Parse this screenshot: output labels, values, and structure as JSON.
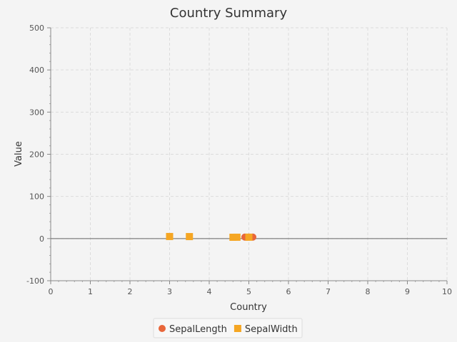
{
  "chart_data": {
    "type": "scatter",
    "title": "Country Summary",
    "xlabel": "Country",
    "ylabel": "Value",
    "xlim": [
      0,
      10
    ],
    "ylim": [
      -100,
      500
    ],
    "x_ticks": [
      0,
      1,
      2,
      3,
      4,
      5,
      6,
      7,
      8,
      9,
      10
    ],
    "y_ticks": [
      -100,
      0,
      100,
      200,
      300,
      400,
      500
    ],
    "grid": true,
    "legend_position": "bottom-center",
    "series": [
      {
        "name": "SepalLength",
        "marker": "circle",
        "color": "#e8663a",
        "points": [
          [
            4.9,
            3.5
          ],
          [
            5.0,
            3.6
          ],
          [
            5.1,
            3.5
          ],
          [
            4.95,
            3.4
          ]
        ]
      },
      {
        "name": "SepalWidth",
        "marker": "square",
        "color": "#f5a623",
        "points": [
          [
            3.0,
            4.9
          ],
          [
            3.5,
            4.7
          ],
          [
            4.6,
            3.1
          ],
          [
            4.7,
            3.2
          ],
          [
            5.0,
            3.3
          ]
        ]
      }
    ]
  }
}
